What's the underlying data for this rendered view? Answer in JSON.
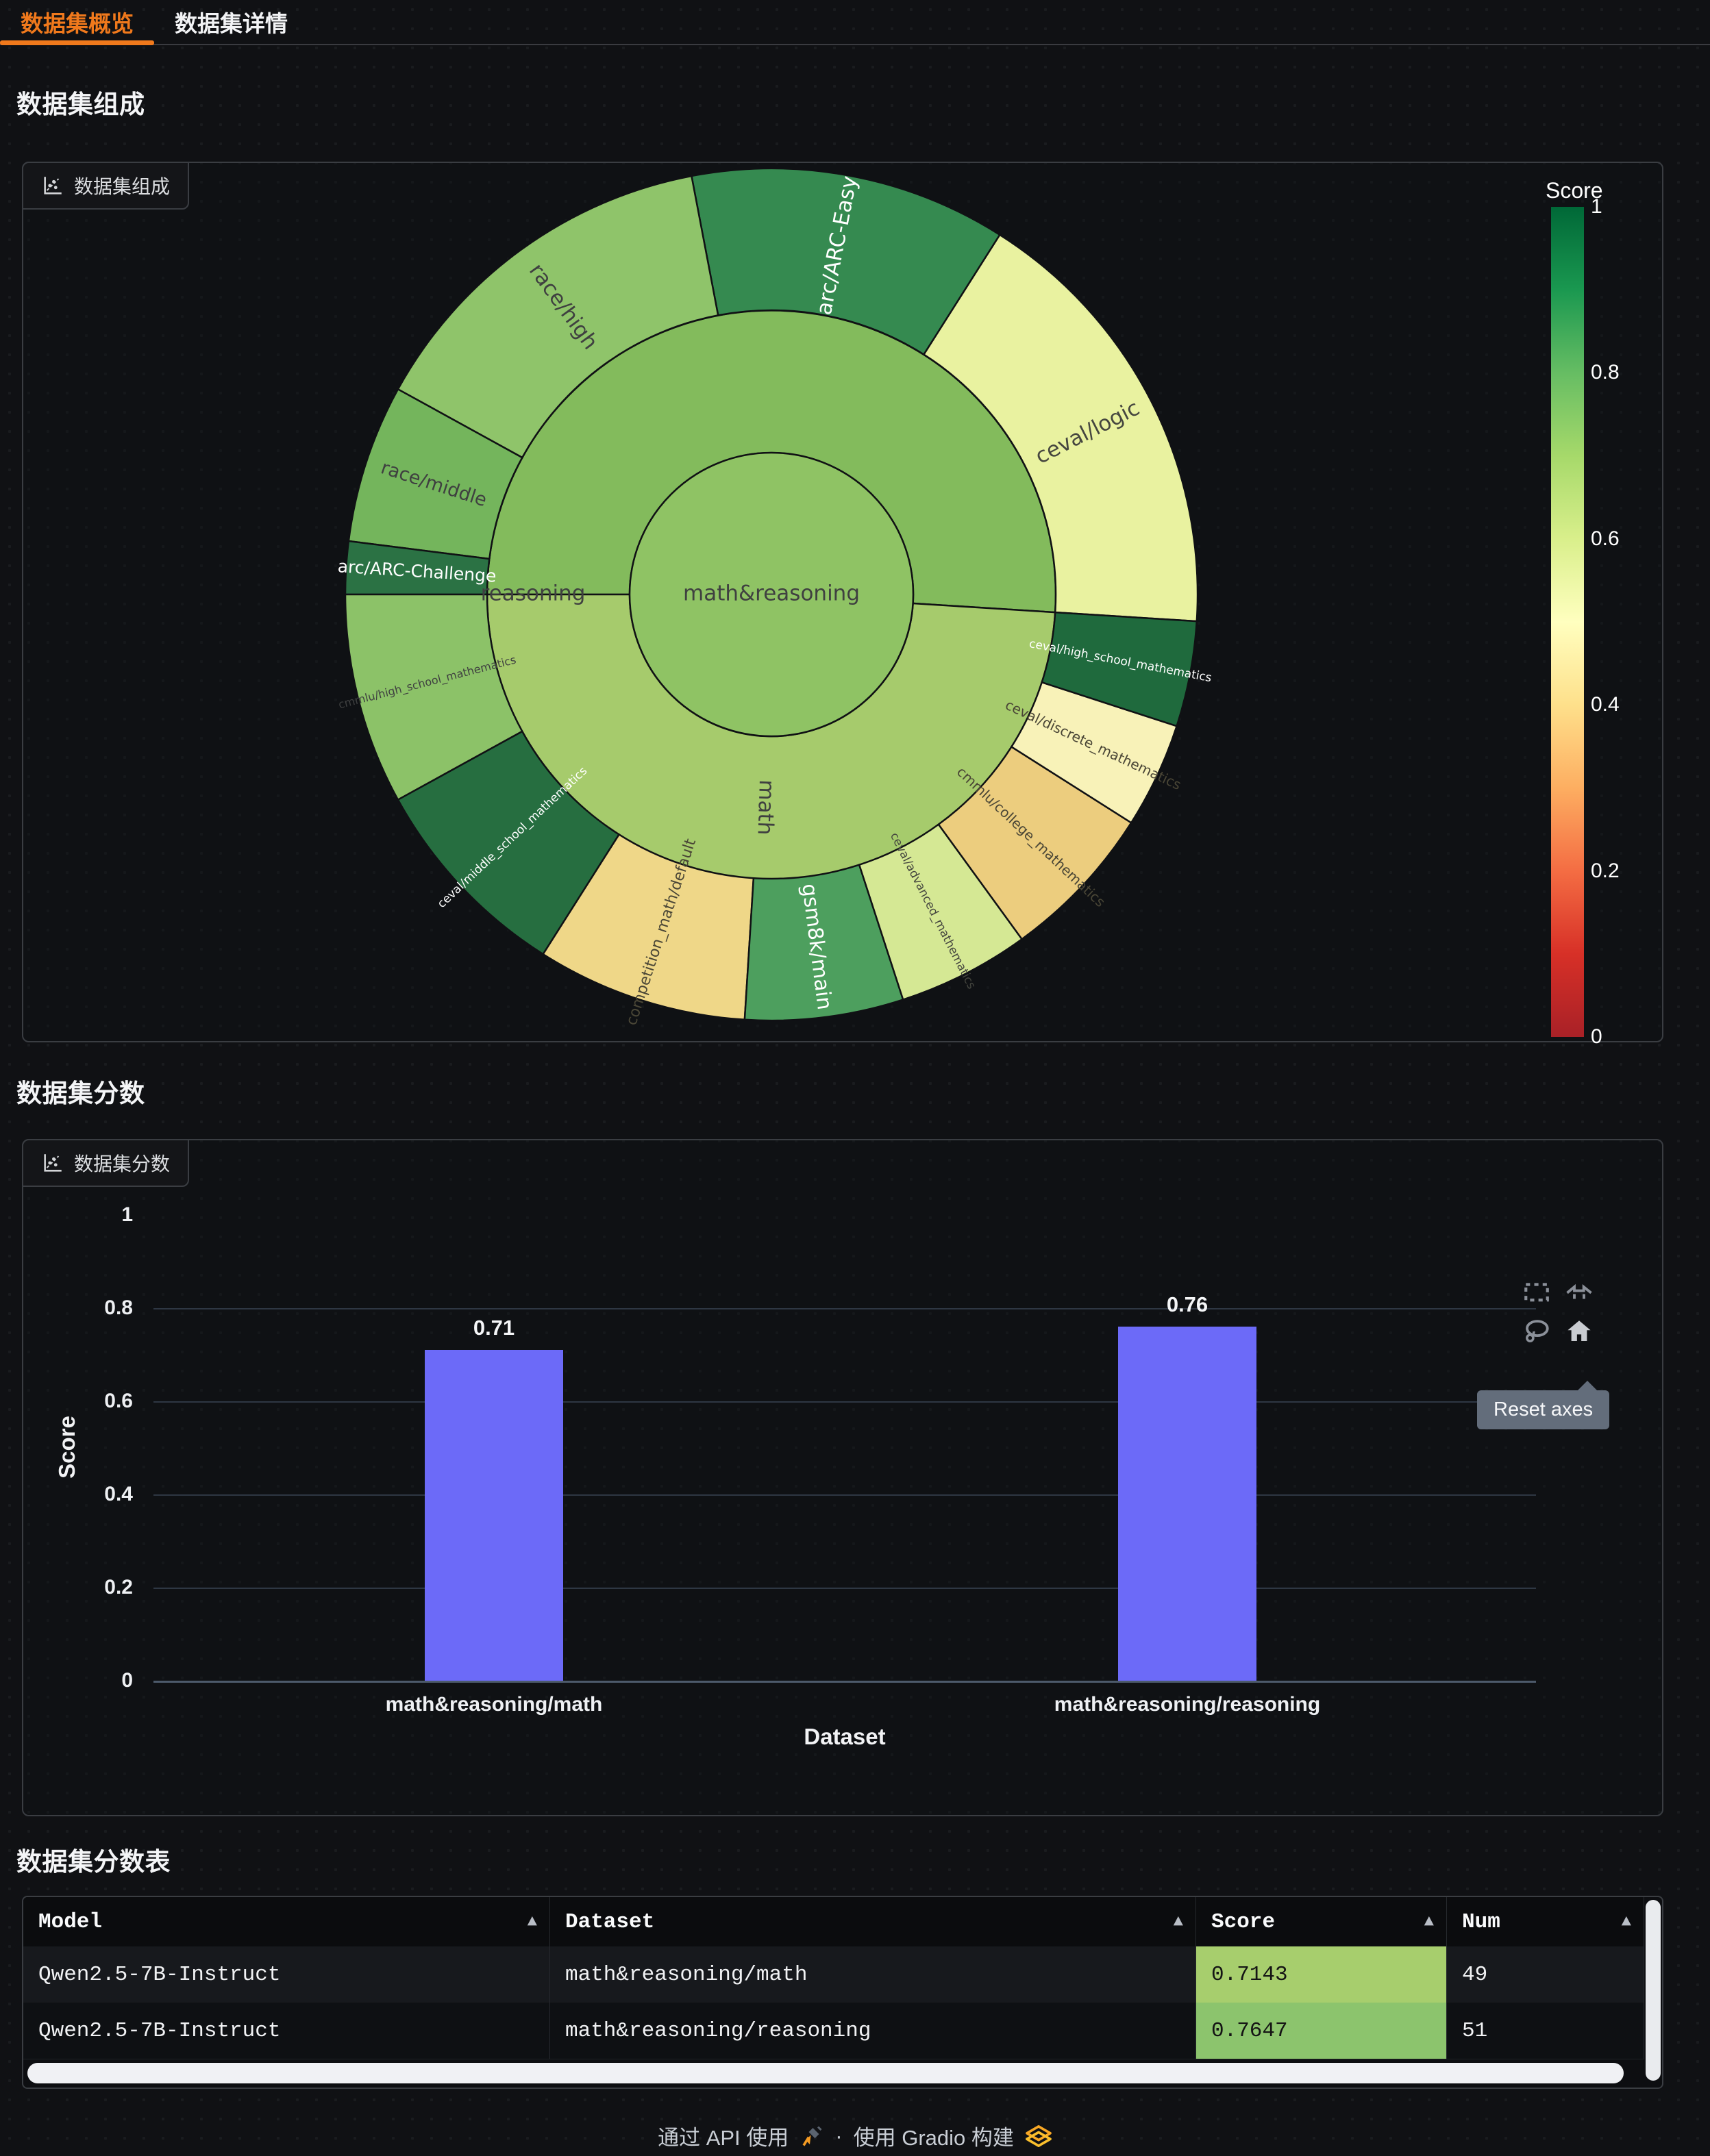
{
  "tabs": {
    "accent_color": "#f0791c",
    "items": [
      {
        "label": "数据集概览",
        "active": true
      },
      {
        "label": "数据集详情",
        "active": false
      }
    ]
  },
  "sections": {
    "composition_heading": "数据集组成",
    "scores_heading": "数据集分数",
    "table_heading": "数据集分数表"
  },
  "panels": {
    "composition": {
      "chip_label": "数据集组成"
    },
    "scores": {
      "chip_label": "数据集分数",
      "tooltip": "Reset axes"
    }
  },
  "chart_data": [
    {
      "type": "sunburst",
      "title": "数据集组成",
      "start_angle_deg": -3.6,
      "center": {
        "label": "math&reasoning",
        "color": "#8fc364",
        "text_color": "#3f4040",
        "label_size": 31
      },
      "rings": [
        {
          "label": "reasoning",
          "value": 51,
          "score": 0.7647,
          "color": "#83bb5c",
          "text_color": "#3f4040",
          "label_size": 31
        },
        {
          "label": "math",
          "value": 49,
          "score": 0.7143,
          "color": "#a6cb6c",
          "text_color": "#3f4040",
          "label_size": 31
        }
      ],
      "segments": [
        {
          "parent": "reasoning",
          "label": "ceval/logic",
          "value": 17,
          "color": "#e9f2a0",
          "text_color": "#45463f",
          "label_size": 31
        },
        {
          "parent": "reasoning",
          "label": "arc/ARC-Easy",
          "value": 12,
          "color": "#358a50",
          "text_color": "#ffffff",
          "label_size": 31
        },
        {
          "parent": "reasoning",
          "label": "race/high",
          "value": 14,
          "color": "#8fc46a",
          "text_color": "#3f4040",
          "label_size": 31
        },
        {
          "parent": "reasoning",
          "label": "race/middle",
          "value": 6,
          "color": "#74b55c",
          "text_color": "#3f4040",
          "label_size": 27
        },
        {
          "parent": "reasoning",
          "label": "arc/ARC-Challenge",
          "value": 2,
          "color": "#2b7244",
          "text_color": "#ffffff",
          "label_size": 25
        },
        {
          "parent": "math",
          "label": "cmmlu/high_school_mathematics",
          "value": 8,
          "color": "#8cc268",
          "text_color": "#3f4040",
          "label_size": 16
        },
        {
          "parent": "math",
          "label": "ceval/middle_school_mathematics",
          "value": 8,
          "color": "#266e40",
          "text_color": "#ffffff",
          "label_size": 17
        },
        {
          "parent": "math",
          "label": "competition_math/default",
          "value": 8,
          "color": "#efd788",
          "text_color": "#4a4636",
          "label_size": 22
        },
        {
          "parent": "math",
          "label": "gsm8k/main",
          "value": 6,
          "color": "#4d9f5e",
          "text_color": "#ffffff",
          "label_size": 30
        },
        {
          "parent": "math",
          "label": "ceval/advanced_mathematics",
          "value": 5,
          "color": "#d5e894",
          "text_color": "#45463f",
          "label_size": 17
        },
        {
          "parent": "math",
          "label": "cmmlu/college_mathematics",
          "value": 6,
          "color": "#eccd7e",
          "text_color": "#4a4636",
          "label_size": 20
        },
        {
          "parent": "math",
          "label": "ceval/discrete_mathematics",
          "value": 4,
          "color": "#f8f2b8",
          "text_color": "#4a4636",
          "label_size": 20
        },
        {
          "parent": "math",
          "label": "ceval/high_school_mathematics",
          "value": 4,
          "color": "#1f6a3d",
          "text_color": "#ffffff",
          "label_size": 17
        }
      ],
      "colorbar": {
        "title": "Score",
        "ticks": [
          "1",
          "0.8",
          "0.6",
          "0.4",
          "0.2",
          "0"
        ],
        "stops": [
          "#006837",
          "#1a9850",
          "#66bd63",
          "#a6d96a",
          "#d9ef8b",
          "#ffffbf",
          "#fee08b",
          "#fdae61",
          "#f46d43",
          "#d73027",
          "#a92127"
        ]
      }
    },
    {
      "type": "bar",
      "categories": [
        "math&reasoning/math",
        "math&reasoning/reasoning"
      ],
      "values": [
        0.71,
        0.76
      ],
      "value_labels": [
        "0.71",
        "0.76"
      ],
      "xlabel": "Dataset",
      "ylabel": "Score",
      "ylim": [
        0,
        1
      ],
      "yticks": [
        "0",
        "0.2",
        "0.4",
        "0.6",
        "0.8",
        "1"
      ],
      "bar_color": "#6c6af8",
      "legend": "none",
      "grid": true
    }
  ],
  "table": {
    "columns": [
      "Model",
      "Dataset",
      "Score",
      "Num"
    ],
    "sort_icon": "▲",
    "rows": [
      {
        "model": "Qwen2.5-7B-Instruct",
        "dataset": "math&reasoning/math",
        "score": "0.7143",
        "num": "49",
        "score_bg": "#a7ce6d"
      },
      {
        "model": "Qwen2.5-7B-Instruct",
        "dataset": "math&reasoning/reasoning",
        "score": "0.7647",
        "num": "51",
        "score_bg": "#8cc46d"
      }
    ]
  },
  "footer": {
    "api_label": "通过 API 使用",
    "separator": "·",
    "built_label": "使用 Gradio 构建"
  }
}
